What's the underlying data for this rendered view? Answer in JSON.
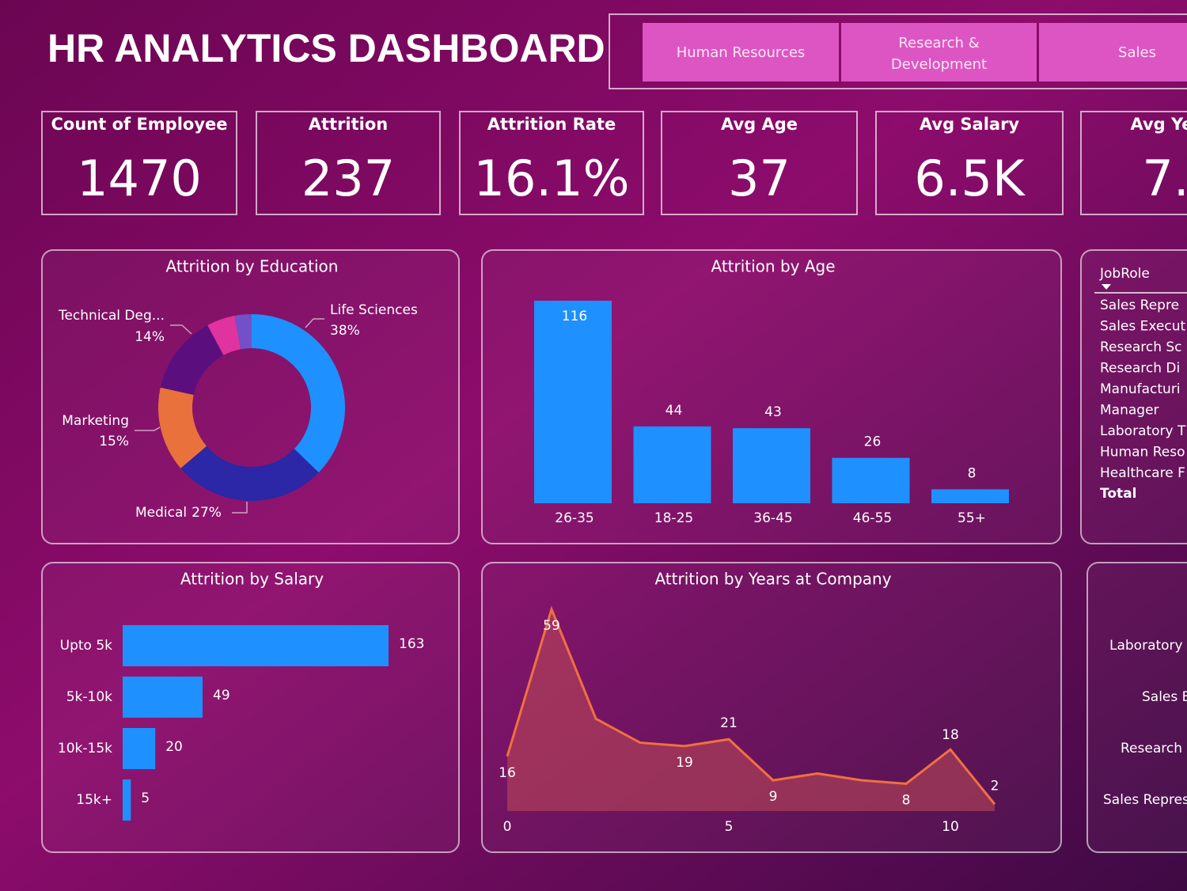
{
  "header": {
    "title": "HR ANALYTICS DASHBOARD",
    "departments": [
      "Human Resources",
      "Research & Development",
      "Sales"
    ]
  },
  "kpis": [
    {
      "label": "Count of Employee",
      "value": "1470"
    },
    {
      "label": "Attrition",
      "value": "237"
    },
    {
      "label": "Attrition Rate",
      "value": "16.1%"
    },
    {
      "label": "Avg Age",
      "value": "37"
    },
    {
      "label": "Avg Salary",
      "value": "6.5K"
    },
    {
      "label": "Avg Ye",
      "value": "7."
    }
  ],
  "job_role_slicer": {
    "title": "JobRole",
    "items": [
      "Sales Repre",
      "Sales Execut",
      "Research Sc",
      "Research Di",
      "Manufacturi",
      "Manager",
      "Laboratory T",
      "Human Reso",
      "Healthcare F"
    ],
    "total": "Total"
  },
  "job_role_panel": {
    "labels": [
      "Laboratory",
      "Sales E",
      "Research",
      "Sales Repres"
    ]
  },
  "chart_data": [
    {
      "type": "donut",
      "title": "Attrition by Education",
      "categories": [
        "Life Sciences",
        "Medical",
        "Marketing",
        "Technical Deg...",
        null,
        null
      ],
      "values": [
        38,
        27,
        15,
        14,
        5,
        3
      ],
      "value_labels": [
        "38%",
        "27%",
        "15%",
        "14%",
        null,
        null
      ],
      "colors": [
        "#1e90ff",
        "#2b27a6",
        "#e8713c",
        "#5b0f7e",
        "#e0339f",
        "#7450c8"
      ]
    },
    {
      "type": "bar",
      "title": "Attrition by Age",
      "categories": [
        "26-35",
        "18-25",
        "36-45",
        "46-55",
        "55+"
      ],
      "values": [
        116,
        44,
        43,
        26,
        8
      ],
      "color": "#1e90ff"
    },
    {
      "type": "bar",
      "orientation": "horizontal",
      "title": "Attrition by Salary",
      "categories": [
        "Upto 5k",
        "5k-10k",
        "10k-15k",
        "15k+"
      ],
      "values": [
        163,
        49,
        20,
        5
      ],
      "color": "#1e90ff"
    },
    {
      "type": "area",
      "title": "Attrition by Years at Company",
      "x": [
        0,
        1,
        2,
        3,
        4,
        5,
        6,
        7,
        8,
        9,
        10,
        11
      ],
      "values": [
        16,
        59,
        27,
        20,
        19,
        21,
        9,
        11,
        9,
        8,
        18,
        2
      ],
      "value_labels": [
        "16",
        "59",
        null,
        null,
        "19",
        "21",
        "9",
        null,
        null,
        "8",
        "18",
        "2"
      ],
      "xlim": [
        0,
        11
      ],
      "xticks": [
        0,
        5,
        10
      ],
      "color": "#f07040",
      "fill": "#c04a58"
    }
  ]
}
